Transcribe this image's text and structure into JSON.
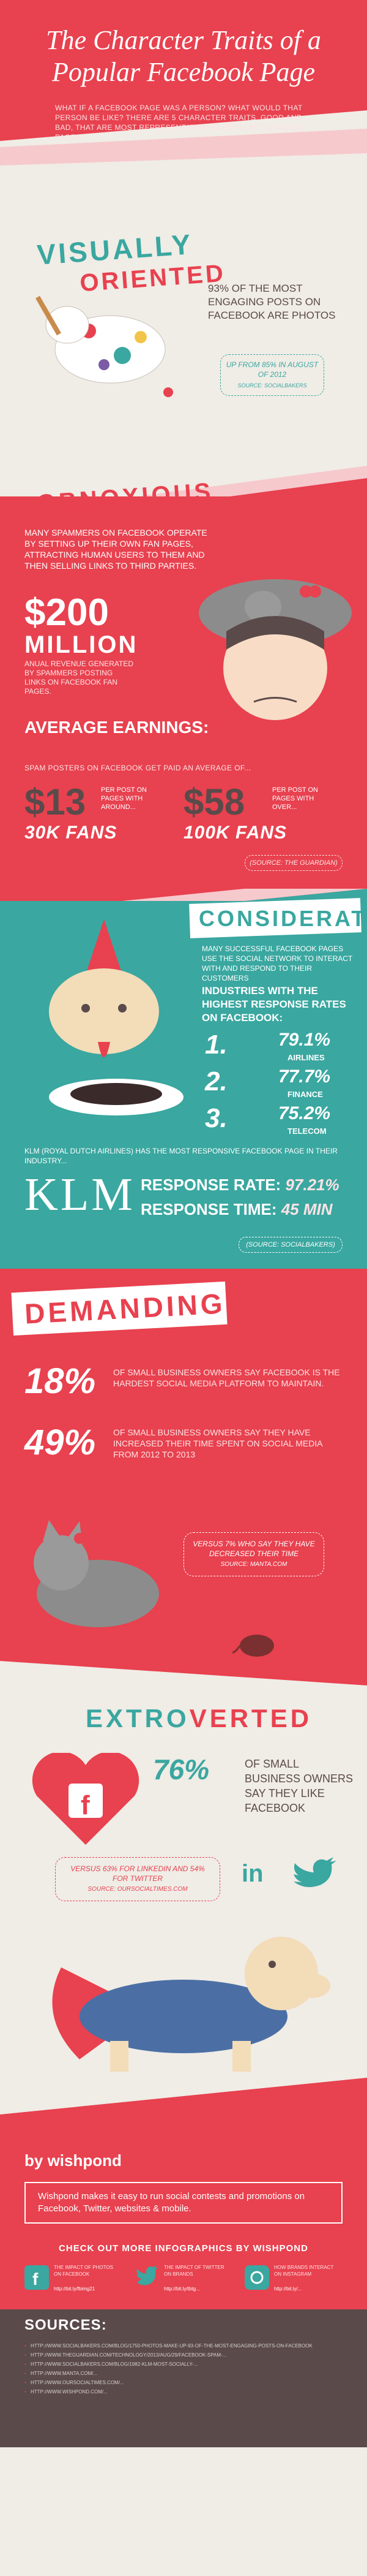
{
  "hero": {
    "title": "The Character Traits of a Popular Facebook Page",
    "intro": "What if a Facebook page was a person? What would that person be like? There are 5 character traits, good and bad, that are most representative of popular Facebook pages."
  },
  "visually_oriented": {
    "title_line1": "Visually",
    "title_line2": "Oriented",
    "stat": "93% of the most engaging posts on Facebook are photos",
    "sub": "Up from 85% in August of 2012",
    "source": "Source: SocialBakers"
  },
  "obnoxious": {
    "title": "Obnoxious",
    "intro": "Many spammers on Facebook operate by setting up their own fan pages, attracting human users to them and then selling links to third parties.",
    "big": "$200",
    "million": "MILLION",
    "big_sub": "Anual revenue generated by spammers posting links on Facebook fan pages.",
    "avg_label": "Average Earnings:",
    "avg_sub": "Spam posters on Facebook get paid an average of...",
    "tier1": {
      "price": "$13",
      "note": "Per post on pages with around...",
      "fans": "30K FANS"
    },
    "tier2": {
      "price": "$58",
      "note": "Per post on pages with over...",
      "fans": "100K FANS"
    },
    "source": "(Source: The Guardian)"
  },
  "considerate": {
    "title": "Considerate",
    "intro": "Many successful Facebook pages use the social network to interact with and respond to their customers",
    "head": "Industries with the highest response rates on Facebook:",
    "ranks": [
      {
        "n": "1.",
        "pct": "79.1%",
        "name": "Airlines"
      },
      {
        "n": "2.",
        "pct": "77.7%",
        "name": "Finance"
      },
      {
        "n": "3.",
        "pct": "75.2%",
        "name": "Telecom"
      }
    ],
    "klm_intro": "KLM (Royal Dutch Airlines) has the most responsive Facebook page in their industry...",
    "klm": "KLM",
    "rate_label": "Response Rate:",
    "rate_value": "97.21%",
    "time_label": "Response Time:",
    "time_value": "45 MIN",
    "source": "(Source: SocialBakers)"
  },
  "demanding": {
    "title": "Demanding",
    "stat1_pct": "18%",
    "stat1_note": "of small business owners say Facebook is the hardest social media platform to maintain.",
    "stat2_pct": "49%",
    "stat2_note": "of small business owners say they have increased their time spent on social media from 2012 to 2013",
    "vs": "Versus 7% who say they have decreased their time",
    "vs_source": "Source: Manta.com"
  },
  "extroverted": {
    "title_a": "Extro",
    "title_b": "verted",
    "pct": "76%",
    "note": "of small business owners say they like Facebook",
    "sub": "Versus 63% for LinkedIn and 54% for Twitter",
    "sub_source": "Source: OurSocialTimes.com",
    "linkedin": "in"
  },
  "footer": {
    "brand": "by wishpond",
    "brand_text": "Wishpond makes it easy to run social contests and promotions on Facebook, Twitter, websites & mobile.",
    "more": "CHECK OUT MORE INFOGRAPHICS BY WISHPOND",
    "related": [
      {
        "text": "The impact of photos on Facebook",
        "link": "http://bit.ly/fbimg21"
      },
      {
        "text": "The impact of Twitter on brands",
        "link": "http://bit.ly/tbtg..."
      },
      {
        "text": "How brands interact on Instagram",
        "link": "http://bit.ly/..."
      }
    ],
    "sources_title": "Sources:",
    "sources": [
      "http://www.socialbakers.com/blog/1750-photos-make-up-93-of-the-most-engaging-posts-on-facebook",
      "http://www.theguardian.com/technology/2013/aug/29/facebook-spam-...",
      "http://www.socialbakers.com/blog/1982-klm-most-socially-...",
      "http://www.manta.com/...",
      "http://www.oursocialtimes.com/...",
      "http://www.wishpond.com/..."
    ],
    "colors": {
      "red": "#e8414f",
      "teal": "#3aa7a0",
      "cream": "#f0ece6",
      "dark": "#5a4a4a"
    }
  }
}
